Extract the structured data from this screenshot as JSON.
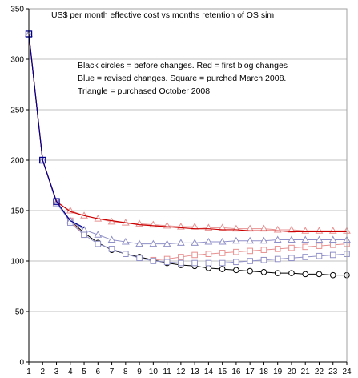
{
  "chart_data": {
    "type": "line",
    "title": "US$ per month effective cost vs months retention of OS sim",
    "annotations": [
      "Black circles = before changes.  Red = first blog changes",
      "Blue = revised changes. Square = purched March 2008.",
      "Triangle = purchased October 2008"
    ],
    "xlabel": "",
    "ylabel": "",
    "x": [
      1,
      2,
      3,
      4,
      5,
      6,
      7,
      8,
      9,
      10,
      11,
      12,
      13,
      14,
      15,
      16,
      17,
      18,
      19,
      20,
      21,
      22,
      23,
      24
    ],
    "xlim": [
      1,
      24
    ],
    "ylim": [
      0,
      350
    ],
    "yticks": [
      0,
      50,
      100,
      150,
      200,
      250,
      300,
      350
    ],
    "grid": "horizontal",
    "series": [
      {
        "marker": "circle",
        "color": "#000000",
        "values": [
          325,
          200,
          159,
          140,
          128,
          118,
          111,
          107,
          104,
          101,
          98,
          96,
          95,
          93,
          92,
          91,
          90,
          89,
          88,
          88,
          87,
          87,
          86,
          86
        ]
      },
      {
        "marker": "square",
        "color": "#e89090",
        "values": [
          325,
          200,
          159,
          140,
          126,
          null,
          null,
          null,
          null,
          101,
          102,
          104,
          106,
          107,
          108,
          109,
          110,
          111,
          112,
          113,
          114,
          115,
          116,
          117
        ]
      },
      {
        "marker": "square",
        "color": "#9090c8",
        "values": [
          325,
          200,
          159,
          138,
          126,
          117,
          112,
          107,
          103,
          100,
          99,
          98,
          98,
          98,
          98,
          99,
          100,
          101,
          102,
          103,
          104,
          105,
          106,
          107
        ]
      },
      {
        "marker": "triangle",
        "color": "#e89090",
        "values": [
          325,
          200,
          158,
          150,
          145,
          142,
          139,
          138,
          137,
          136,
          135,
          134,
          134,
          133,
          133,
          132,
          132,
          132,
          131,
          131,
          130,
          130,
          130,
          130
        ]
      },
      {
        "marker": "triangle",
        "color": "#9090c8",
        "values": [
          325,
          200,
          157,
          140,
          131,
          126,
          121,
          119,
          117,
          117,
          117,
          118,
          118,
          119,
          119,
          120,
          120,
          120,
          121,
          121,
          121,
          121,
          121,
          121
        ]
      },
      {
        "marker": "none",
        "color": "#cc0000",
        "values": [
          325,
          200,
          159,
          149,
          145,
          142,
          140,
          138,
          136,
          135,
          134,
          133,
          132,
          132,
          131,
          131,
          130,
          130,
          130,
          129,
          129,
          129,
          129,
          129
        ]
      },
      {
        "marker": "none",
        "color": "#000090",
        "values": [
          325,
          200,
          159,
          140,
          133,
          null,
          null,
          null,
          null,
          null,
          null,
          null,
          null,
          null,
          null,
          null,
          null,
          null,
          null,
          null,
          null,
          null,
          null,
          null
        ]
      }
    ]
  }
}
